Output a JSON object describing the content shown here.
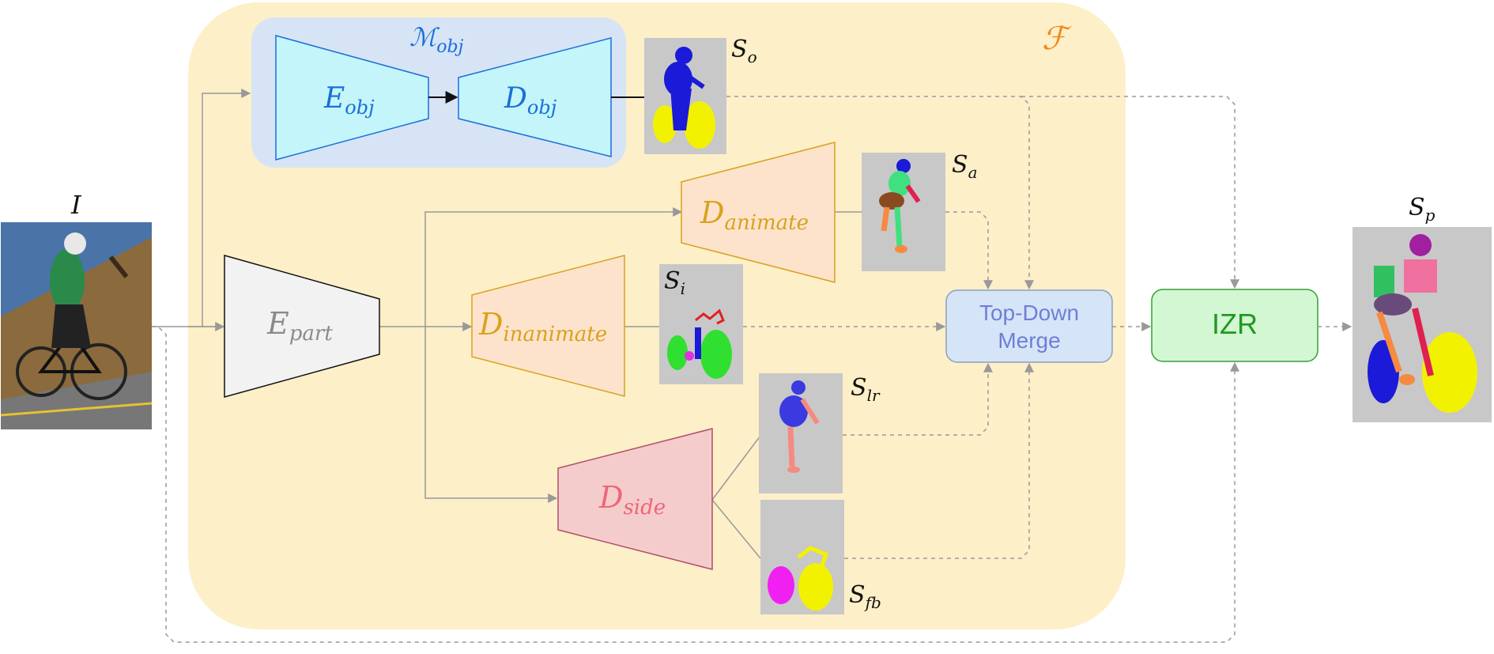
{
  "labels": {
    "input": "I",
    "family": "ℱ",
    "m_obj": {
      "base": "ℳ",
      "sub": "obj"
    },
    "e_obj": {
      "base": "E",
      "sub": "obj"
    },
    "d_obj": {
      "base": "D",
      "sub": "obj"
    },
    "e_part": {
      "base": "E",
      "sub": "part"
    },
    "d_animate": {
      "base": "D",
      "sub": "animate"
    },
    "d_inanimate": {
      "base": "D",
      "sub": "inanimate"
    },
    "d_side": {
      "base": "D",
      "sub": "side"
    },
    "s_o": {
      "base": "S",
      "sub": "o"
    },
    "s_a": {
      "base": "S",
      "sub": "a"
    },
    "s_i": {
      "base": "S",
      "sub": "i"
    },
    "s_lr": {
      "base": "S",
      "sub": "lr"
    },
    "s_fb": {
      "base": "S",
      "sub": "fb"
    },
    "s_p": {
      "base": "S",
      "sub": "p"
    },
    "merge_line1": "Top-Down",
    "merge_line2": "Merge",
    "izr": "IZR"
  },
  "colors": {
    "family_bg": "#fdefc8",
    "family_label": "#f08a18",
    "m_obj_bg": "#d6e4f6",
    "m_obj_text": "#1a6fd8",
    "obj_trap_fill": "#c3f5fa",
    "obj_trap_stroke": "#1a6fd8",
    "part_fill": "#f2f2f2",
    "part_text": "#8a8a8a",
    "anim_fill": "#fde3cb",
    "anim_stroke": "#d8a21f",
    "anim_text": "#d8a21f",
    "side_fill": "#f5cccc",
    "side_stroke": "#b0506a",
    "side_text": "#ee6677",
    "merge_fill": "#d6e4f7",
    "merge_stroke": "#8aa0c0",
    "merge_text": "#6d7fd8",
    "izr_fill": "#d3f6d3",
    "izr_stroke": "#33a033",
    "izr_text": "#1f9a1f",
    "arrow": "#999999",
    "seg_bg": "#c8c8c8"
  }
}
